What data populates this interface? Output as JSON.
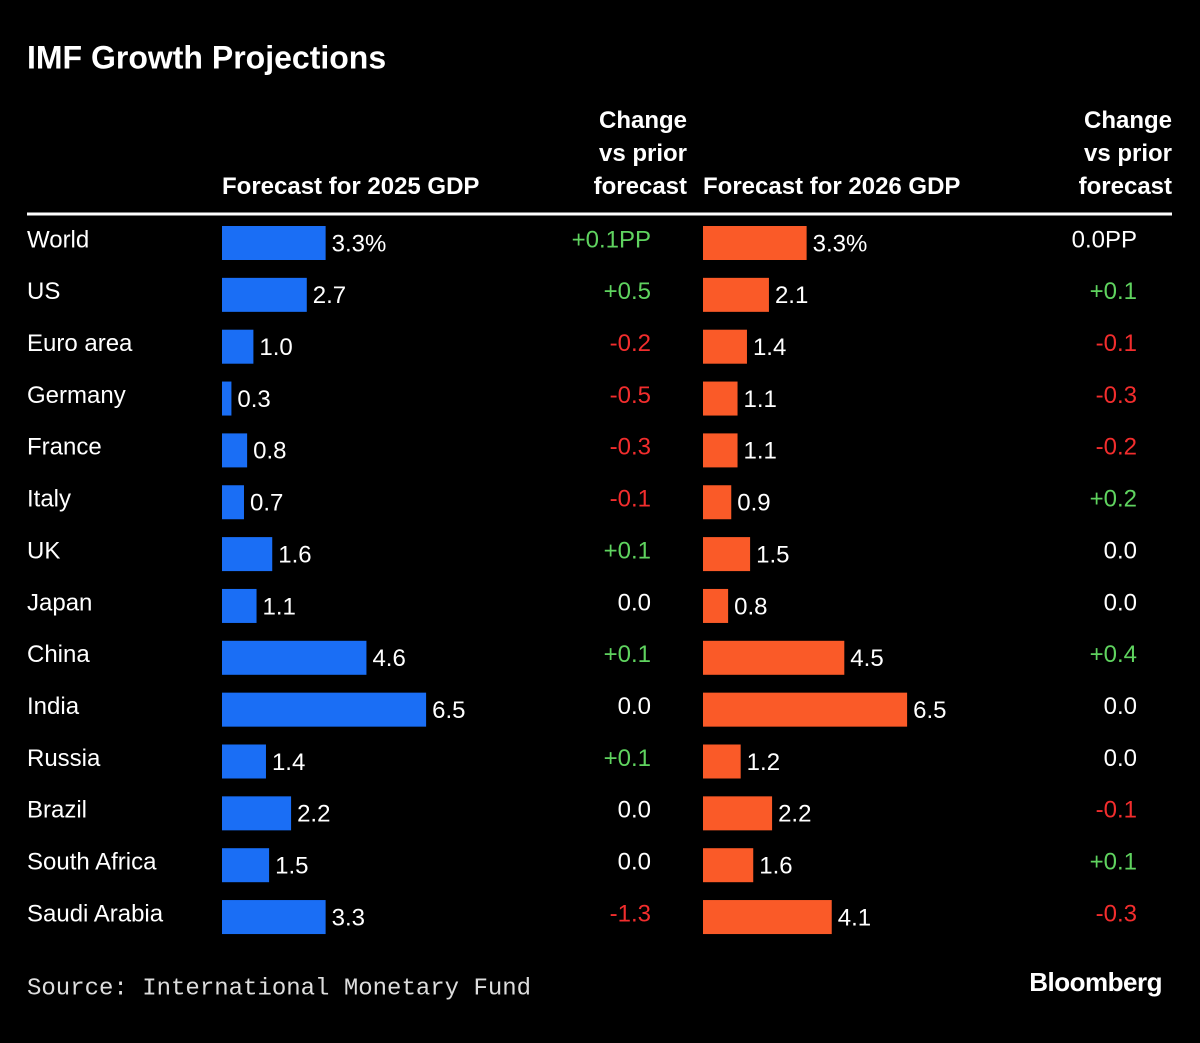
{
  "chart_data": {
    "type": "bar_table",
    "title": "IMF Growth Projections",
    "categories": [
      "World",
      "US",
      "Euro area",
      "Germany",
      "France",
      "Italy",
      "UK",
      "Japan",
      "China",
      "India",
      "Russia",
      "Brazil",
      "South Africa",
      "Saudi Arabia"
    ],
    "series": [
      {
        "name": "Forecast for 2025 GDP",
        "color": "#1a6ef5",
        "values": [
          3.3,
          2.7,
          1.0,
          0.3,
          0.8,
          0.7,
          1.6,
          1.1,
          4.6,
          6.5,
          1.4,
          2.2,
          1.5,
          3.3
        ],
        "value_labels": [
          "3.3%",
          "2.7",
          "1.0",
          "0.3",
          "0.8",
          "0.7",
          "1.6",
          "1.1",
          "4.6",
          "6.5",
          "1.4",
          "2.2",
          "1.5",
          "3.3"
        ],
        "change": {
          "name": "Change vs prior forecast",
          "values": [
            0.1,
            0.5,
            -0.2,
            -0.5,
            -0.3,
            -0.1,
            0.1,
            0.0,
            0.1,
            0.0,
            0.1,
            0.0,
            0.0,
            -1.3
          ],
          "value_labels": [
            "+0.1PP",
            "+0.5",
            "-0.2",
            "-0.5",
            "-0.3",
            "-0.1",
            "+0.1",
            "0.0",
            "+0.1",
            "0.0",
            "+0.1",
            "0.0",
            "0.0",
            "-1.3"
          ]
        }
      },
      {
        "name": "Forecast for 2026 GDP",
        "color": "#fa5a28",
        "values": [
          3.3,
          2.1,
          1.4,
          1.1,
          1.1,
          0.9,
          1.5,
          0.8,
          4.5,
          6.5,
          1.2,
          2.2,
          1.6,
          4.1
        ],
        "value_labels": [
          "3.3%",
          "2.1",
          "1.4",
          "1.1",
          "1.1",
          "0.9",
          "1.5",
          "0.8",
          "4.5",
          "6.5",
          "1.2",
          "2.2",
          "1.6",
          "4.1"
        ],
        "change": {
          "name": "Change vs prior forecast",
          "values": [
            0.0,
            0.1,
            -0.1,
            -0.3,
            -0.2,
            0.2,
            0.0,
            0.0,
            0.4,
            0.0,
            0.0,
            -0.1,
            0.1,
            -0.3
          ],
          "value_labels": [
            "0.0PP",
            "+0.1",
            "-0.1",
            "-0.3",
            "-0.2",
            "+0.2",
            "0.0",
            "0.0",
            "+0.4",
            "0.0",
            "0.0",
            "-0.1",
            "+0.1",
            "-0.3"
          ]
        }
      }
    ],
    "positive_color": "#5fd35f",
    "negative_color": "#f22d2d",
    "neutral_color": "#ffffff",
    "source": "Source: International Monetary Fund",
    "brand": "Bloomberg"
  }
}
